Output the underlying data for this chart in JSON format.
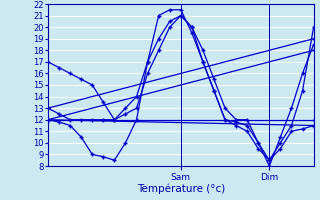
{
  "background_color": "#cce8f0",
  "grid_color": "#ffffff",
  "line_color": "#0000cc",
  "xlabel": "Température (°c)",
  "sam_label": "Sam",
  "dim_label": "Dim",
  "ylim": [
    8,
    22
  ],
  "yticks": [
    8,
    9,
    10,
    11,
    12,
    13,
    14,
    15,
    16,
    17,
    18,
    19,
    20,
    21,
    22
  ],
  "xlim": [
    0,
    48
  ],
  "sam_x": 24,
  "dim_x": 40,
  "curves": [
    {
      "x": [
        0,
        2,
        4,
        6,
        8,
        10,
        12,
        14,
        16,
        18,
        20,
        22,
        24,
        26,
        28,
        30,
        32,
        34,
        36,
        38,
        40,
        42,
        44,
        46,
        48
      ],
      "y": [
        17,
        16.5,
        16,
        15.5,
        15,
        13.5,
        12,
        13,
        14,
        17,
        19,
        20.5,
        21,
        20,
        18,
        15.5,
        13,
        12,
        12,
        10,
        8,
        10.5,
        13,
        16,
        18.5
      ]
    },
    {
      "x": [
        0,
        2,
        4,
        6,
        8,
        10,
        12,
        14,
        16,
        18,
        20,
        22,
        24,
        26,
        28,
        30,
        32,
        34,
        36,
        38,
        40,
        42,
        44,
        46,
        48
      ],
      "y": [
        13,
        12.5,
        12,
        12,
        12,
        12,
        12,
        12.5,
        13,
        16,
        18,
        20,
        21,
        20,
        17,
        14.5,
        12,
        11.5,
        11,
        9.5,
        8.5,
        10,
        11.5,
        14.5,
        20
      ]
    },
    {
      "x": [
        0,
        2,
        4,
        6,
        8,
        10,
        12,
        14,
        16,
        18,
        20,
        22,
        24,
        26,
        28,
        30,
        32,
        34,
        36,
        38,
        40,
        42,
        44,
        46,
        48
      ],
      "y": [
        12,
        11.8,
        11.5,
        10.5,
        9,
        8.8,
        8.5,
        10,
        12,
        17,
        21,
        21.5,
        21.5,
        19.5,
        17,
        14.5,
        12,
        11.8,
        11.5,
        10,
        8.5,
        9.5,
        11,
        11.2,
        11.5
      ]
    },
    {
      "x": [
        0,
        48
      ],
      "y": [
        13,
        19
      ]
    },
    {
      "x": [
        0,
        48
      ],
      "y": [
        12,
        18
      ]
    },
    {
      "x": [
        0,
        48
      ],
      "y": [
        12,
        12
      ]
    },
    {
      "x": [
        0,
        48
      ],
      "y": [
        12,
        11.5
      ]
    }
  ]
}
